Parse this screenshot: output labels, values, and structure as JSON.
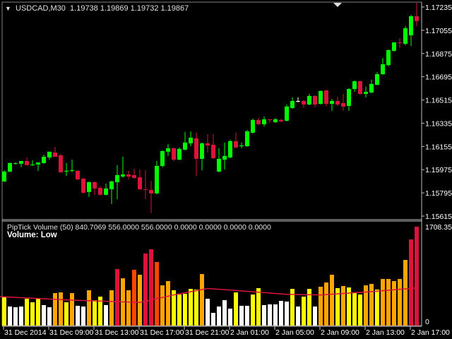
{
  "header": {
    "symbol": "USDCAD,M30",
    "quote": "1.19738 1.19869 1.19732 1.19867",
    "menu_icon": "triangle-down-icon"
  },
  "indicator": {
    "label": "PipTick Volume (50) 840.7069 556.0000 556.0000 0.0000 0.0000 0.0000 0.0000",
    "status": "Volume:  Low"
  },
  "colors": {
    "bull": "#00ff00",
    "bear": "#dc143c",
    "doji": "#ffffff",
    "white": "#ffffff",
    "yellow": "#ffff00",
    "orange": "#ffa500",
    "orangered": "#ff4500",
    "crimson": "#dc143c",
    "ma": "#dc143c",
    "background": "#000000",
    "axis": "#c0c0c0"
  },
  "chart_data": [
    {
      "type": "candlestick",
      "ylim": [
        1.15615,
        1.17235
      ],
      "yticks": [
        "1.17235",
        "1.17055",
        "1.16875",
        "1.16695",
        "1.16515",
        "1.16335",
        "1.16155",
        "1.15975",
        "1.15795",
        "1.15615"
      ],
      "xticks": [
        {
          "bar": 0,
          "label": "31 Dec 2014"
        },
        {
          "bar": 8,
          "label": "31 Dec 09:00"
        },
        {
          "bar": 16,
          "label": "31 Dec 13:00"
        },
        {
          "bar": 24,
          "label": "31 Dec 17:00"
        },
        {
          "bar": 32,
          "label": "31 Dec 21:00"
        },
        {
          "bar": 40,
          "label": "2 Jan 01:00"
        },
        {
          "bar": 48,
          "label": "2 Jan 05:00"
        },
        {
          "bar": 56,
          "label": "2 Jan 09:00"
        },
        {
          "bar": 64,
          "label": "2 Jan 13:00"
        },
        {
          "bar": 72,
          "label": "2 Jan 17:00"
        }
      ],
      "ohlc": [
        [
          1.15884,
          1.15971,
          1.15878,
          1.1596
        ],
        [
          1.1596,
          1.16031,
          1.15955,
          1.16026
        ],
        [
          1.16021,
          1.16031,
          1.16015,
          1.16026
        ],
        [
          1.16021,
          1.16042,
          1.15993,
          1.16042
        ],
        [
          1.16042,
          1.1607,
          1.1601,
          1.1601
        ],
        [
          1.1601,
          1.16048,
          1.16004,
          1.16015
        ],
        [
          1.16015,
          1.16031,
          1.15966,
          1.16031
        ],
        [
          1.16026,
          1.16092,
          1.16021,
          1.16075
        ],
        [
          1.1607,
          1.16114,
          1.16053,
          1.16114
        ],
        [
          1.16108,
          1.16152,
          1.16075,
          1.16075
        ],
        [
          1.16086,
          1.16097,
          1.1595,
          1.15955
        ],
        [
          1.1596,
          1.16026,
          1.15927,
          1.15966
        ],
        [
          1.15966,
          1.16053,
          1.15955,
          1.15971
        ],
        [
          1.15966,
          1.15971,
          1.15895,
          1.159
        ],
        [
          1.15905,
          1.15911,
          1.15791,
          1.15796
        ],
        [
          1.15802,
          1.15884,
          1.15764,
          1.15878
        ],
        [
          1.15878,
          1.15884,
          1.1578,
          1.15829
        ],
        [
          1.15834,
          1.15845,
          1.15775,
          1.1578
        ],
        [
          1.1578,
          1.15867,
          1.15775,
          1.15829
        ],
        [
          1.15823,
          1.15889,
          1.15709,
          1.15884
        ],
        [
          1.15878,
          1.1601,
          1.15747,
          1.15933
        ],
        [
          1.15922,
          1.16075,
          1.15911,
          1.15938
        ],
        [
          1.15938,
          1.15966,
          1.159,
          1.15922
        ],
        [
          1.15933,
          1.15982,
          1.15905,
          1.15911
        ],
        [
          1.15916,
          1.15977,
          1.15818,
          1.15823
        ],
        [
          1.15823,
          1.15971,
          1.15747,
          1.15818
        ],
        [
          1.15818,
          1.15889,
          1.15638,
          1.15791
        ],
        [
          1.15791,
          1.16042,
          1.15785,
          1.16004
        ],
        [
          1.16004,
          1.16125,
          1.15993,
          1.16119
        ],
        [
          1.16114,
          1.16174,
          1.16081,
          1.16141
        ],
        [
          1.16141,
          1.16147,
          1.16042,
          1.16053
        ],
        [
          1.16053,
          1.16147,
          1.16048,
          1.16136
        ],
        [
          1.1613,
          1.16267,
          1.16125,
          1.16185
        ],
        [
          1.16179,
          1.16272,
          1.16157,
          1.16223
        ],
        [
          1.16218,
          1.16261,
          1.15927,
          1.16059
        ],
        [
          1.16059,
          1.16185,
          1.15971,
          1.16179
        ],
        [
          1.16179,
          1.1625,
          1.16108,
          1.16163
        ],
        [
          1.16168,
          1.1625,
          1.16059,
          1.16064
        ],
        [
          1.1596,
          1.16141,
          1.15955,
          1.16059
        ],
        [
          1.16053,
          1.16185,
          1.15977,
          1.16081
        ],
        [
          1.1607,
          1.16207,
          1.16064,
          1.16196
        ],
        [
          1.16196,
          1.16261,
          1.16141,
          1.16147
        ],
        [
          1.16157,
          1.16185,
          1.16141,
          1.16163
        ],
        [
          1.16157,
          1.16283,
          1.16152,
          1.16272
        ],
        [
          1.16261,
          1.16371,
          1.16256,
          1.1636
        ],
        [
          1.1636,
          1.16376,
          1.16321,
          1.16327
        ],
        [
          1.16327,
          1.16387,
          1.1631,
          1.16365
        ],
        [
          1.16365,
          1.16365,
          1.16338,
          1.1636
        ],
        [
          1.16343,
          1.16376,
          1.16338,
          1.16365
        ],
        [
          1.1636,
          1.16371,
          1.16343,
          1.16349
        ],
        [
          1.16354,
          1.1648,
          1.16349,
          1.16464
        ],
        [
          1.16453,
          1.16535,
          1.16447,
          1.16507
        ],
        [
          1.16507,
          1.16535,
          1.16496,
          1.16507
        ],
        [
          1.16507,
          1.16513,
          1.16453,
          1.1648
        ],
        [
          1.1648,
          1.16562,
          1.16475,
          1.16546
        ],
        [
          1.16546,
          1.16551,
          1.16458,
          1.1648
        ],
        [
          1.16485,
          1.16589,
          1.1648,
          1.16584
        ],
        [
          1.16589,
          1.16595,
          1.16469,
          1.16485
        ],
        [
          1.16485,
          1.16524,
          1.16431,
          1.16507
        ],
        [
          1.16507,
          1.1654,
          1.16469,
          1.1648
        ],
        [
          1.16491,
          1.16562,
          1.16431,
          1.16464
        ],
        [
          1.16469,
          1.16606,
          1.16431,
          1.166
        ],
        [
          1.166,
          1.16666,
          1.16578,
          1.1666
        ],
        [
          1.1666,
          1.16666,
          1.16556,
          1.16562
        ],
        [
          1.16562,
          1.16617,
          1.16535,
          1.16578
        ],
        [
          1.16573,
          1.16671,
          1.16567,
          1.16639
        ],
        [
          1.16633,
          1.16731,
          1.16628,
          1.16715
        ],
        [
          1.16715,
          1.16841,
          1.16709,
          1.16792
        ],
        [
          1.16786,
          1.16907,
          1.16775,
          1.16901
        ],
        [
          1.16896,
          1.16961,
          1.1689,
          1.16961
        ],
        [
          1.16961,
          1.16994,
          1.16918,
          1.16956
        ],
        [
          1.1695,
          1.17087,
          1.16939,
          1.17071
        ],
        [
          1.17016,
          1.17175,
          1.16934,
          1.17164
        ],
        [
          1.17164,
          1.17268,
          1.17087,
          1.17126
        ]
      ]
    },
    {
      "type": "bar",
      "title": "PipTick Volume (50)",
      "ylim": [
        0,
        1708.35
      ],
      "yticks": [
        "1708.35",
        "0"
      ],
      "values": [
        500,
        329,
        317,
        329,
        464,
        403,
        464,
        354,
        317,
        561,
        573,
        403,
        561,
        342,
        329,
        610,
        439,
        500,
        354,
        610,
        976,
        817,
        610,
        964,
        878,
        1244,
        1318,
        1098,
        695,
        769,
        610,
        537,
        549,
        634,
        622,
        891,
        464,
        220,
        329,
        439,
        293,
        573,
        342,
        342,
        537,
        647,
        354,
        366,
        366,
        427,
        415,
        634,
        329,
        500,
        634,
        329,
        671,
        744,
        878,
        647,
        683,
        659,
        573,
        537,
        695,
        720,
        622,
        805,
        805,
        769,
        805,
        1135,
        1488,
        1708
      ],
      "bar_colors": [
        "yellow",
        "white",
        "white",
        "white",
        "yellow",
        "yellow",
        "yellow",
        "white",
        "white",
        "orange",
        "orange",
        "yellow",
        "orange",
        "white",
        "white",
        "orange",
        "yellow",
        "yellow",
        "white",
        "orange",
        "crimson",
        "orange",
        "orange",
        "orangered",
        "orange",
        "crimson",
        "crimson",
        "orangered",
        "orange",
        "orange",
        "yellow",
        "yellow",
        "yellow",
        "yellow",
        "yellow",
        "orange",
        "white",
        "white",
        "white",
        "white",
        "white",
        "yellow",
        "white",
        "white",
        "yellow",
        "yellow",
        "white",
        "white",
        "white",
        "white",
        "white",
        "yellow",
        "white",
        "yellow",
        "yellow",
        "white",
        "orange",
        "orange",
        "orange",
        "yellow",
        "orange",
        "yellow",
        "yellow",
        "yellow",
        "orange",
        "orange",
        "yellow",
        "orange",
        "orange",
        "orange",
        "orange",
        "orange",
        "crimson",
        "crimson"
      ],
      "ma": [
        {
          "bar": 0,
          "value": 500
        },
        {
          "bar": 12,
          "value": 440
        },
        {
          "bar": 24,
          "value": 400
        },
        {
          "bar": 30,
          "value": 530
        },
        {
          "bar": 36,
          "value": 640
        },
        {
          "bar": 42,
          "value": 600
        },
        {
          "bar": 50,
          "value": 540
        },
        {
          "bar": 56,
          "value": 530
        },
        {
          "bar": 64,
          "value": 580
        },
        {
          "bar": 73,
          "value": 650
        }
      ]
    }
  ]
}
